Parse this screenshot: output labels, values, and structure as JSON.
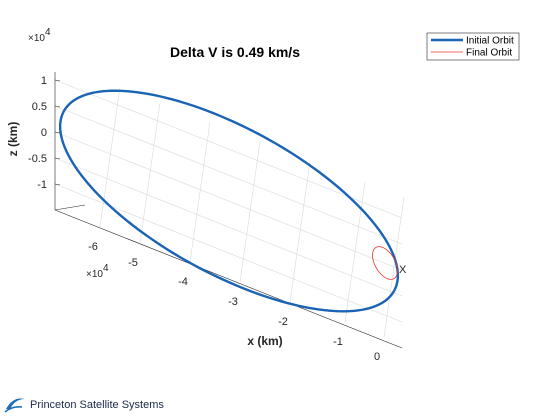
{
  "chart_data": {
    "type": "line",
    "title": "Delta V is 0.49 km/s",
    "xlabel": "x (km)",
    "ylabel": "",
    "zlabel": "z (km)",
    "x_ticks": [
      "-6",
      "-5",
      "-4",
      "-3",
      "-2",
      "-1",
      "0"
    ],
    "y_ticks": [],
    "z_ticks": [
      "1",
      "0.5",
      "0",
      "-0.5",
      "-1"
    ],
    "x_multiplier": "×10",
    "x_multiplier_exp": "4",
    "z_multiplier": "×10",
    "z_multiplier_exp": "4",
    "marker_label": "X",
    "grid": true,
    "legend_position": "top-right",
    "series": [
      {
        "name": "Initial Orbit",
        "color": "#1a63b5",
        "width": 2.4,
        "shape": "large ellipse"
      },
      {
        "name": "Final Orbit",
        "color": "#e8352b",
        "width": 0.8,
        "shape": "small ellipse"
      }
    ]
  },
  "footer": {
    "company": "Princeton Satellite Systems"
  }
}
